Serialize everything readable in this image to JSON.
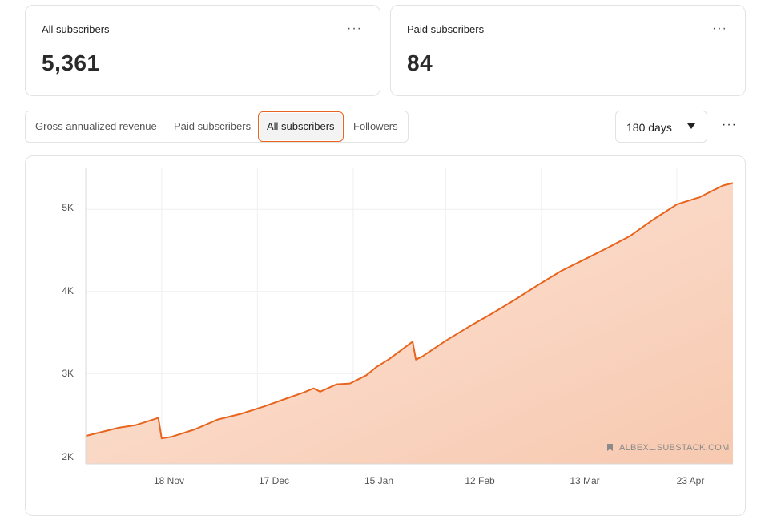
{
  "cards": [
    {
      "label": "All subscribers",
      "value": "5,361",
      "menu": "···"
    },
    {
      "label": "Paid subscribers",
      "value": "84",
      "menu": "···"
    }
  ],
  "tabs": [
    {
      "label": "Gross annualized revenue",
      "active": false
    },
    {
      "label": "Paid subscribers",
      "active": false
    },
    {
      "label": "All subscribers",
      "active": true
    },
    {
      "label": "Followers",
      "active": false
    }
  ],
  "range": {
    "label": "180 days",
    "options_visible": [
      "180 days"
    ]
  },
  "page_menu": "···",
  "watermark": "ALBEXL.SUBSTACK.COM",
  "colors": {
    "accent": "#e8651f",
    "area_fill": "#f9d2bd"
  },
  "chart_data": {
    "type": "area",
    "title": "",
    "xlabel": "",
    "ylabel": "",
    "ylim": [
      1900,
      5500
    ],
    "yticks": [
      {
        "value": 2000,
        "label": "2K"
      },
      {
        "value": 3000,
        "label": "3K"
      },
      {
        "value": 4000,
        "label": "4K"
      },
      {
        "value": 5000,
        "label": "5K"
      }
    ],
    "xticks": [
      "18 Nov",
      "17 Dec",
      "15 Jan",
      "12 Feb",
      "13 Mar",
      "23 Apr"
    ],
    "grid": true,
    "series": [
      {
        "values": [
          [
            "2024-10-26",
            2240
          ],
          [
            "2024-10-31",
            2290
          ],
          [
            "2024-11-05",
            2340
          ],
          [
            "2024-11-10",
            2370
          ],
          [
            "2024-11-17",
            2460
          ],
          [
            "2024-11-18",
            2210
          ],
          [
            "2024-11-21",
            2230
          ],
          [
            "2024-11-28",
            2320
          ],
          [
            "2024-12-05",
            2440
          ],
          [
            "2024-12-12",
            2510
          ],
          [
            "2024-12-19",
            2600
          ],
          [
            "2024-12-26",
            2700
          ],
          [
            "2024-12-31",
            2770
          ],
          [
            "2025-01-03",
            2820
          ],
          [
            "2025-01-05",
            2780
          ],
          [
            "2025-01-10",
            2870
          ],
          [
            "2025-01-14",
            2880
          ],
          [
            "2025-01-19",
            2980
          ],
          [
            "2025-01-22",
            3080
          ],
          [
            "2025-01-26",
            3180
          ],
          [
            "2025-02-02",
            3390
          ],
          [
            "2025-02-03",
            3170
          ],
          [
            "2025-02-05",
            3210
          ],
          [
            "2025-02-12",
            3400
          ],
          [
            "2025-02-19",
            3570
          ],
          [
            "2025-02-26",
            3730
          ],
          [
            "2025-03-05",
            3900
          ],
          [
            "2025-03-12",
            4080
          ],
          [
            "2025-03-19",
            4250
          ],
          [
            "2025-03-26",
            4390
          ],
          [
            "2025-04-02",
            4530
          ],
          [
            "2025-04-09",
            4680
          ],
          [
            "2025-04-16",
            4880
          ],
          [
            "2025-04-23",
            5060
          ],
          [
            "2025-04-30",
            5150
          ],
          [
            "2025-05-07",
            5290
          ],
          [
            "2025-05-10",
            5320
          ]
        ]
      }
    ]
  }
}
